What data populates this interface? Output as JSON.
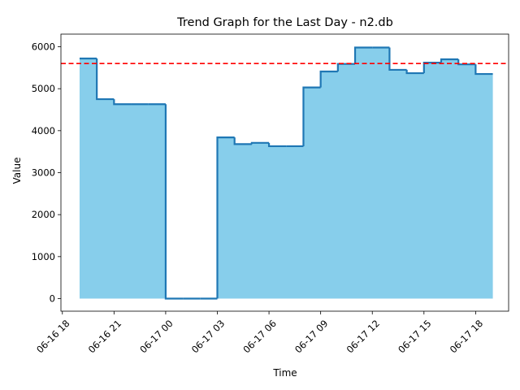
{
  "chart_data": {
    "type": "area",
    "step": "post",
    "title": "Trend Graph for the Last Day - n2.db",
    "xlabel": "Time",
    "ylabel": "Value",
    "x_ticks": [
      "06-16 18",
      "06-16 21",
      "06-17 00",
      "06-17 03",
      "06-17 06",
      "06-17 09",
      "06-17 12",
      "06-17 15",
      "06-17 18"
    ],
    "y_ticks": [
      0,
      1000,
      2000,
      3000,
      4000,
      5000,
      6000
    ],
    "xlim": [
      "2024-06-16 17:55",
      "2024-06-17 19:55"
    ],
    "ylim": [
      -300,
      6300
    ],
    "grid": false,
    "fill_color": "#87ceeb",
    "line_color": "#1f77b4",
    "reference_line": {
      "value": 5600,
      "color": "#ff0000",
      "style": "dashed"
    },
    "series": [
      {
        "x": [
          "2024-06-16 19:00",
          "2024-06-16 20:00",
          "2024-06-16 21:00",
          "2024-06-16 22:00",
          "2024-06-16 23:00",
          "2024-06-17 00:00",
          "2024-06-17 01:00",
          "2024-06-17 02:00",
          "2024-06-17 03:00",
          "2024-06-17 04:00",
          "2024-06-17 05:00",
          "2024-06-17 06:00",
          "2024-06-17 07:00",
          "2024-06-17 08:00",
          "2024-06-17 09:00",
          "2024-06-17 10:00",
          "2024-06-17 11:00",
          "2024-06-17 12:00",
          "2024-06-17 13:00",
          "2024-06-17 14:00",
          "2024-06-17 15:00",
          "2024-06-17 16:00",
          "2024-06-17 17:00",
          "2024-06-17 18:00",
          "2024-06-17 19:00"
        ],
        "values": [
          5720,
          4750,
          4630,
          4630,
          4630,
          0,
          0,
          0,
          3840,
          3680,
          3710,
          3630,
          3630,
          5030,
          5410,
          5590,
          5980,
          5980,
          5450,
          5370,
          5620,
          5700,
          5580,
          5350,
          5350
        ]
      }
    ]
  }
}
